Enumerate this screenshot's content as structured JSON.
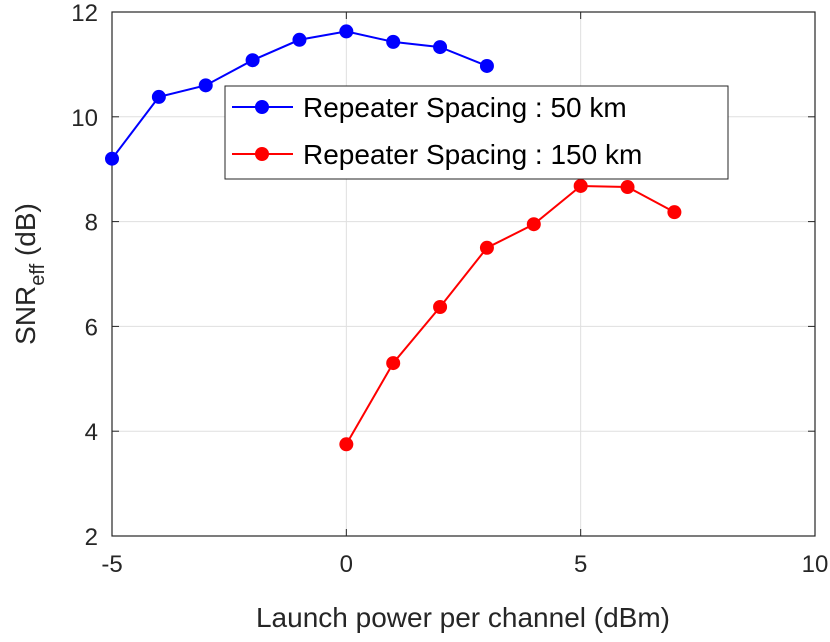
{
  "chart_data": {
    "type": "line",
    "xlabel": "Launch power per channel (dBm)",
    "ylabel_main": "SNR",
    "ylabel_sub": "eff",
    "ylabel_unit": " (dB)",
    "xlim": [
      -5,
      10
    ],
    "ylim": [
      2,
      12
    ],
    "xticks": [
      -5,
      0,
      5,
      10
    ],
    "yticks": [
      2,
      4,
      6,
      8,
      10,
      12
    ],
    "grid": true,
    "legend_position": "top-center",
    "series": [
      {
        "name": "Repeater Spacing : 50 km",
        "color": "#0000ff",
        "x": [
          -5,
          -4,
          -3,
          -2,
          -1,
          0,
          1,
          2,
          3
        ],
        "y": [
          9.2,
          10.38,
          10.6,
          11.08,
          11.47,
          11.63,
          11.43,
          11.33,
          10.97
        ]
      },
      {
        "name": "Repeater Spacing : 150 km",
        "color": "#ff0000",
        "x": [
          0,
          1,
          2,
          3,
          4,
          5,
          6,
          7
        ],
        "y": [
          3.75,
          5.3,
          6.37,
          7.5,
          7.95,
          8.68,
          8.66,
          8.18
        ]
      }
    ]
  }
}
